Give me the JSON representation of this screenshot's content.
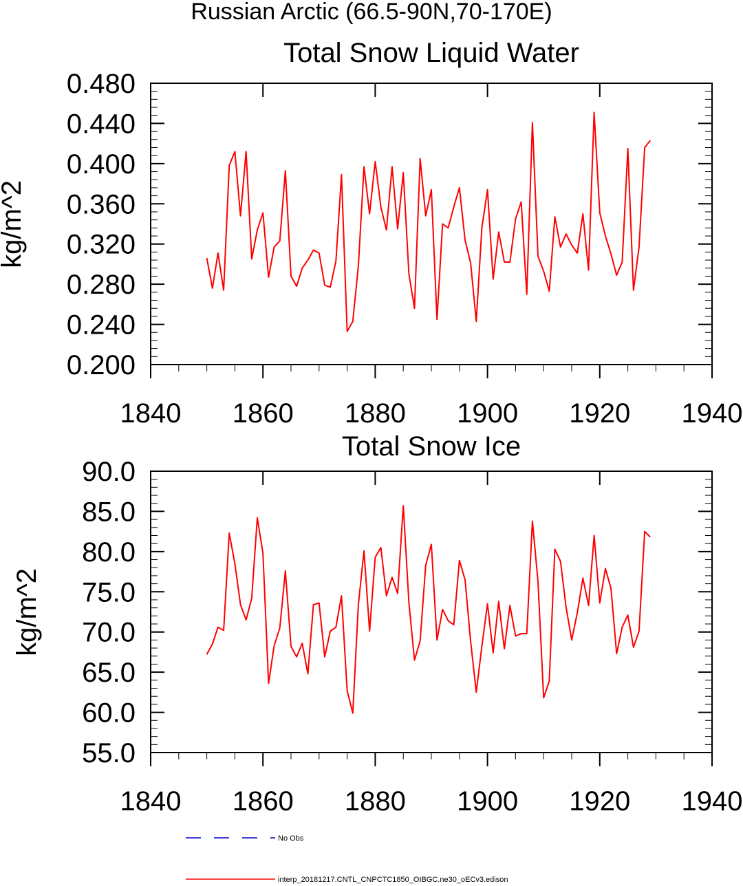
{
  "page_title": "Russian Arctic (66.5-90N,70-170E)",
  "colors": {
    "model_line": "#ff0000",
    "obs_line": "#0000cc",
    "axis": "#000000"
  },
  "legend": [
    {
      "label": "No Obs",
      "color": "#0000cc",
      "dash": true
    },
    {
      "label": "interp_20181217.CNTL_CNPCTC1850_OIBGC.ne30_oECv3.edison",
      "color": "#ff0000",
      "dash": false
    }
  ],
  "chart_data": [
    {
      "type": "line",
      "title": "Total Snow Liquid Water",
      "ylabel": "kg/m^2",
      "xlabel": "",
      "xlim": [
        1840,
        1940
      ],
      "ylim": [
        0.2,
        0.48
      ],
      "x_ticks": [
        "1840",
        "1860",
        "1880",
        "1900",
        "1920",
        "1940"
      ],
      "y_ticks": [
        "0.200",
        "0.240",
        "0.280",
        "0.320",
        "0.360",
        "0.400",
        "0.440",
        "0.480"
      ],
      "grid": false,
      "series": [
        {
          "name": "interp_20181217.CNTL_CNPCTC1850_OIBGC.ne30_oECv3.edison",
          "x_start": 1850,
          "values": [
            0.306,
            0.276,
            0.311,
            0.274,
            0.398,
            0.412,
            0.348,
            0.412,
            0.305,
            0.334,
            0.351,
            0.287,
            0.317,
            0.323,
            0.393,
            0.288,
            0.278,
            0.296,
            0.304,
            0.314,
            0.311,
            0.279,
            0.277,
            0.303,
            0.389,
            0.233,
            0.243,
            0.298,
            0.397,
            0.35,
            0.402,
            0.357,
            0.334,
            0.397,
            0.335,
            0.391,
            0.29,
            0.256,
            0.405,
            0.348,
            0.374,
            0.245,
            0.34,
            0.336,
            0.357,
            0.376,
            0.324,
            0.301,
            0.243,
            0.336,
            0.374,
            0.285,
            0.332,
            0.302,
            0.302,
            0.345,
            0.362,
            0.27,
            0.441,
            0.308,
            0.293,
            0.273,
            0.347,
            0.317,
            0.33,
            0.319,
            0.311,
            0.35,
            0.294,
            0.451,
            0.351,
            0.328,
            0.31,
            0.289,
            0.302,
            0.415,
            0.274,
            0.317,
            0.416,
            0.423
          ]
        }
      ]
    },
    {
      "type": "line",
      "title": "Total Snow Ice",
      "ylabel": "kg/m^2",
      "xlabel": "",
      "xlim": [
        1840,
        1940
      ],
      "ylim": [
        55,
        90
      ],
      "x_ticks": [
        "1840",
        "1860",
        "1880",
        "1900",
        "1920",
        "1940"
      ],
      "y_ticks": [
        "55.0",
        "60.0",
        "65.0",
        "70.0",
        "75.0",
        "80.0",
        "85.0",
        "90.0"
      ],
      "grid": false,
      "series": [
        {
          "name": "interp_20181217.CNTL_CNPCTC1850_OIBGC.ne30_oECv3.edison",
          "x_start": 1850,
          "values": [
            67.2,
            68.5,
            70.6,
            70.2,
            82.3,
            78.5,
            73.4,
            71.5,
            74.2,
            84.2,
            79.8,
            63.6,
            68.3,
            70.5,
            77.6,
            68.2,
            66.9,
            68.6,
            64.8,
            73.4,
            73.6,
            66.9,
            70.1,
            70.6,
            74.5,
            62.7,
            59.9,
            73.4,
            80.1,
            70.1,
            79.3,
            80.5,
            74.5,
            76.8,
            74.8,
            85.7,
            73.6,
            66.5,
            68.9,
            78.3,
            80.9,
            69.0,
            72.8,
            71.4,
            70.9,
            78.9,
            76.5,
            68.8,
            62.5,
            68.2,
            73.5,
            67.4,
            73.8,
            67.9,
            73.3,
            69.5,
            69.8,
            69.8,
            83.8,
            76.3,
            61.8,
            63.9,
            80.3,
            78.8,
            73.1,
            69.0,
            72.4,
            76.7,
            73.3,
            82.0,
            73.6,
            77.9,
            75.4,
            67.3,
            70.6,
            72.1,
            68.1,
            70.1,
            82.5,
            81.8
          ]
        }
      ]
    }
  ]
}
